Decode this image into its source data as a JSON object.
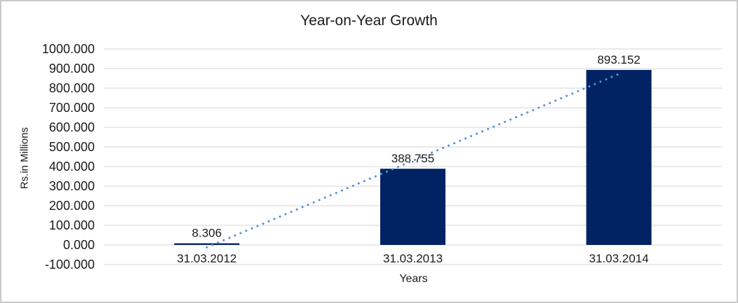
{
  "window": {
    "background": "#ffffff",
    "border_color": "#c9c9c9"
  },
  "chart_data": {
    "type": "bar",
    "title": "Year-on-Year Growth",
    "xlabel": "Years",
    "ylabel": "Rs.in Millions",
    "categories": [
      "31.03.2012",
      "31.03.2013",
      "31.03.2014"
    ],
    "values": [
      8.306,
      388.755,
      893.152
    ],
    "data_labels": [
      "8.306",
      "388.755",
      "893.152"
    ],
    "ylim": [
      -100,
      1000
    ],
    "ytick_step": 100,
    "ytick_decimals": 3,
    "grid": true,
    "legend_position": "none",
    "bar_color": "#012364",
    "gridline_color": "#d6d6d6",
    "text_color": "#1a1a1a",
    "trendline": {
      "type": "linear",
      "style": "dotted",
      "color": "#5591d2"
    }
  }
}
